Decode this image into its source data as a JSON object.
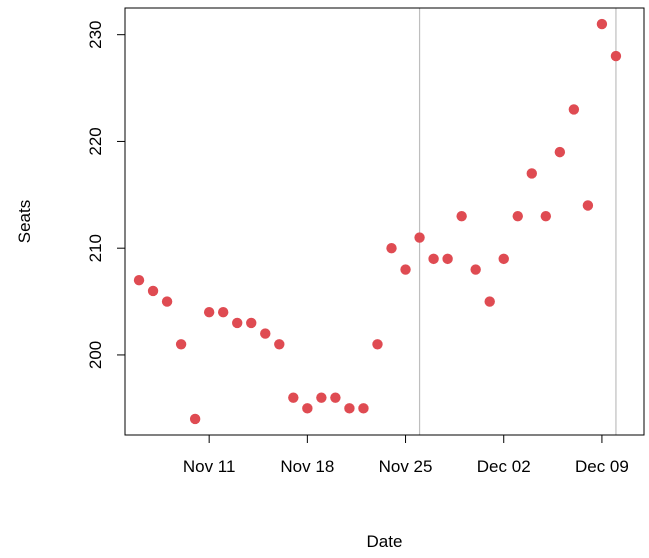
{
  "chart_data": {
    "type": "scatter",
    "title": "",
    "xlabel": "Date",
    "ylabel": "Seats",
    "xlim": [
      "2025-11-05",
      "2025-12-12"
    ],
    "ylim": [
      192.5,
      232.5
    ],
    "x_ticks": [
      {
        "date": "2025-11-11",
        "label": "Nov 11"
      },
      {
        "date": "2025-11-18",
        "label": "Nov 18"
      },
      {
        "date": "2025-11-25",
        "label": "Nov 25"
      },
      {
        "date": "2025-12-02",
        "label": "Dec 02"
      },
      {
        "date": "2025-12-09",
        "label": "Dec 09"
      }
    ],
    "y_ticks": [
      200,
      210,
      220,
      230
    ],
    "vertical_lines": [
      "2025-11-26",
      "2025-12-10"
    ],
    "grid": false,
    "point_color": "#DF4B52",
    "vline_color": "#BEBEBE",
    "points": [
      {
        "x": "2025-11-06",
        "y": 207
      },
      {
        "x": "2025-11-07",
        "y": 206
      },
      {
        "x": "2025-11-08",
        "y": 205
      },
      {
        "x": "2025-11-09",
        "y": 201
      },
      {
        "x": "2025-11-10",
        "y": 194
      },
      {
        "x": "2025-11-11",
        "y": 204
      },
      {
        "x": "2025-11-12",
        "y": 204
      },
      {
        "x": "2025-11-13",
        "y": 203
      },
      {
        "x": "2025-11-14",
        "y": 203
      },
      {
        "x": "2025-11-15",
        "y": 202
      },
      {
        "x": "2025-11-16",
        "y": 201
      },
      {
        "x": "2025-11-17",
        "y": 196
      },
      {
        "x": "2025-11-18",
        "y": 195
      },
      {
        "x": "2025-11-19",
        "y": 196
      },
      {
        "x": "2025-11-20",
        "y": 196
      },
      {
        "x": "2025-11-21",
        "y": 195
      },
      {
        "x": "2025-11-22",
        "y": 195
      },
      {
        "x": "2025-11-23",
        "y": 201
      },
      {
        "x": "2025-11-24",
        "y": 210
      },
      {
        "x": "2025-11-25",
        "y": 208
      },
      {
        "x": "2025-11-26",
        "y": 211
      },
      {
        "x": "2025-11-27",
        "y": 209
      },
      {
        "x": "2025-11-28",
        "y": 209
      },
      {
        "x": "2025-11-29",
        "y": 213
      },
      {
        "x": "2025-11-30",
        "y": 208
      },
      {
        "x": "2025-12-01",
        "y": 205
      },
      {
        "x": "2025-12-02",
        "y": 209
      },
      {
        "x": "2025-12-03",
        "y": 213
      },
      {
        "x": "2025-12-04",
        "y": 217
      },
      {
        "x": "2025-12-05",
        "y": 213
      },
      {
        "x": "2025-12-06",
        "y": 219
      },
      {
        "x": "2025-12-07",
        "y": 223
      },
      {
        "x": "2025-12-08",
        "y": 214
      },
      {
        "x": "2025-12-09",
        "y": 231
      },
      {
        "x": "2025-12-10",
        "y": 228
      }
    ]
  }
}
